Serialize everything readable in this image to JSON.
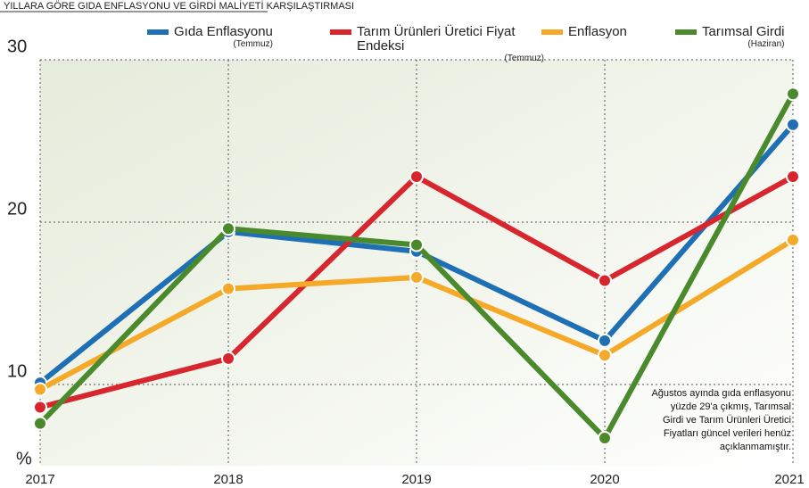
{
  "chart_data": {
    "type": "line",
    "title": "YILLARA GÖRE GIDA ENFLASYONU VE GİRDİ MALİYETİ KARŞILAŞTIRMASI",
    "y_label": "%",
    "categories": [
      "2017",
      "2018",
      "2019",
      "2020",
      "2021"
    ],
    "series": [
      {
        "name": "Gıda Enflasyonu",
        "subname": "(Temmuz)",
        "color": "#1f6fb5",
        "values": [
          10.1,
          19.4,
          18.2,
          12.7,
          26.0
        ]
      },
      {
        "name": "Tarım Ürünleri Üretici Fiyat Endeksi",
        "subname": "(Temmuz)",
        "color": "#d7262e",
        "values": [
          8.6,
          11.6,
          22.8,
          16.4,
          22.8
        ]
      },
      {
        "name": "Enflasyon",
        "color": "#f4a928",
        "values": [
          9.7,
          15.9,
          16.6,
          11.8,
          18.9
        ]
      },
      {
        "name": "Tarımsal Girdi",
        "subname": "(Haziran)",
        "color": "#4a8a2c",
        "values": [
          7.6,
          19.6,
          18.6,
          6.7,
          27.9
        ]
      }
    ],
    "ylim": [
      5,
      30
    ],
    "yticks": [
      10,
      20,
      30
    ],
    "grid": true,
    "annotation": "Ağustos ayında gıda enflasyonu yüzde 29'a çıkmış, Tarımsal Girdi ve Tarım Ürünleri Üretici Fiyatları güncel verileri henüz açıklanmamıştır."
  }
}
